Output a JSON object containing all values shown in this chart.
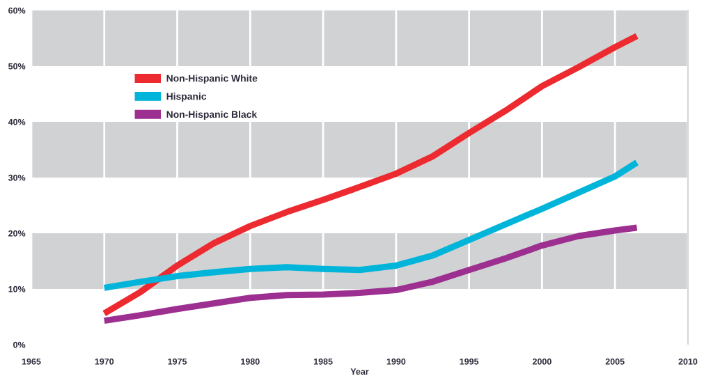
{
  "chart_data": {
    "type": "line",
    "xlabel": "Year",
    "x": [
      1970,
      1972.5,
      1975,
      1977.5,
      1980,
      1982.5,
      1985,
      1987.5,
      1990,
      1992.5,
      1995,
      1997.5,
      2000,
      2002.5,
      2005,
      2006.5
    ],
    "series": [
      {
        "name": "Non-Hispanic White",
        "color": "#ed2a2f",
        "values": [
          5.6,
          9.5,
          14.2,
          18.2,
          21.3,
          23.8,
          26.0,
          28.3,
          30.7,
          33.8,
          38.0,
          42.0,
          46.4,
          49.8,
          53.4,
          55.4
        ]
      },
      {
        "name": "Hispanic",
        "color": "#00b5d9",
        "values": [
          10.2,
          11.3,
          12.3,
          13.0,
          13.6,
          13.9,
          13.6,
          13.4,
          14.2,
          16.0,
          18.8,
          21.6,
          24.4,
          27.3,
          30.2,
          32.7
        ]
      },
      {
        "name": "Non-Hispanic Black",
        "color": "#9c2f90",
        "values": [
          4.3,
          5.3,
          6.4,
          7.4,
          8.4,
          8.9,
          9.0,
          9.3,
          9.8,
          11.3,
          13.4,
          15.5,
          17.8,
          19.5,
          20.5,
          21.0
        ]
      }
    ],
    "xlim": [
      1965,
      2010
    ],
    "xticks": [
      1965,
      1970,
      1975,
      1980,
      1985,
      1990,
      1995,
      2000,
      2005,
      2010
    ],
    "ylim": [
      0,
      60
    ],
    "yticks": [
      {
        "value": 0,
        "label": "0%"
      },
      {
        "value": 10,
        "label": "10%"
      },
      {
        "value": 20,
        "label": "20%"
      },
      {
        "value": 30,
        "label": "30%"
      },
      {
        "value": 40,
        "label": "40%"
      },
      {
        "value": 50,
        "label": "50%"
      },
      {
        "value": 60,
        "label": "60%"
      }
    ],
    "bands": [
      {
        "axis": "y",
        "from": 10,
        "to": 20,
        "color": "#d1d2d4"
      },
      {
        "axis": "y",
        "from": 30,
        "to": 40,
        "color": "#d1d2d4"
      },
      {
        "axis": "y",
        "from": 50,
        "to": 60,
        "color": "#d1d2d4"
      }
    ],
    "grid": "x",
    "legend": "top left",
    "line_style": "solid"
  }
}
